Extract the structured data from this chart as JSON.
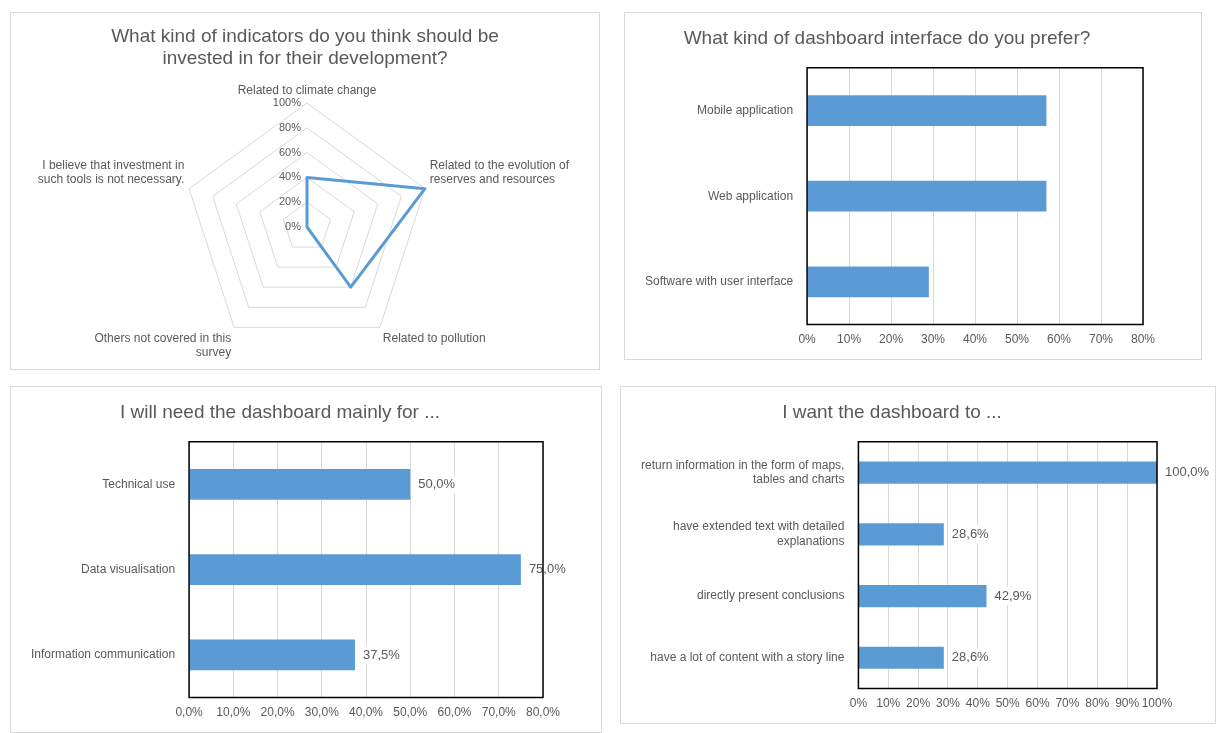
{
  "chart_data": [
    {
      "type": "radar",
      "title": "What kind of indicators do you think should be invested in for their development?",
      "categories": [
        "Related to climate change",
        "Related to the evolution of reserves and resources",
        "Related to pollution",
        "Others not covered in this survey",
        "I believe that investment in such tools is not necessary."
      ],
      "series": [
        {
          "color": "#5b9bd5",
          "values": [
            40,
            100,
            60,
            0,
            0
          ]
        }
      ],
      "ylim": [
        0,
        100
      ],
      "yticks": [
        {
          "value": 0,
          "label": "0%"
        },
        {
          "value": 20,
          "label": "20%"
        },
        {
          "value": 40,
          "label": "40%"
        },
        {
          "value": 60,
          "label": "60%"
        },
        {
          "value": 80,
          "label": "80%"
        },
        {
          "value": 100,
          "label": "100%"
        }
      ],
      "marker": "none",
      "legend": false
    },
    {
      "type": "bar",
      "orientation": "horizontal",
      "title": "What kind of dashboard interface do you prefer?",
      "categories": [
        "Mobile application",
        "Web application",
        "Software with user interface"
      ],
      "values": [
        57,
        57,
        29
      ],
      "color": "#5b9bd5",
      "xlim": [
        0,
        80
      ],
      "xticks": [
        {
          "value": 0,
          "label": "0%"
        },
        {
          "value": 10,
          "label": "10%"
        },
        {
          "value": 20,
          "label": "20%"
        },
        {
          "value": 30,
          "label": "30%"
        },
        {
          "value": 40,
          "label": "40%"
        },
        {
          "value": 50,
          "label": "50%"
        },
        {
          "value": 60,
          "label": "60%"
        },
        {
          "value": 70,
          "label": "70%"
        },
        {
          "value": 80,
          "label": "80%"
        }
      ],
      "grid": "x",
      "legend": false
    },
    {
      "type": "bar",
      "orientation": "horizontal",
      "title": "I will need the dashboard mainly for ...",
      "categories": [
        "Technical use",
        "Data visualisation",
        "Information communication"
      ],
      "values": [
        50,
        75,
        37.5
      ],
      "value_labels": [
        "50,0%",
        "75,0%",
        "37,5%"
      ],
      "color": "#5b9bd5",
      "xlim": [
        0,
        80
      ],
      "xticks": [
        {
          "value": 0,
          "label": "0,0%"
        },
        {
          "value": 10,
          "label": "10,0%"
        },
        {
          "value": 20,
          "label": "20,0%"
        },
        {
          "value": 30,
          "label": "30,0%"
        },
        {
          "value": 40,
          "label": "40,0%"
        },
        {
          "value": 50,
          "label": "50,0%"
        },
        {
          "value": 60,
          "label": "60,0%"
        },
        {
          "value": 70,
          "label": "70,0%"
        },
        {
          "value": 80,
          "label": "80,0%"
        }
      ],
      "grid": "x",
      "legend": false
    },
    {
      "type": "bar",
      "orientation": "horizontal",
      "title": "I want the dashboard to ...",
      "categories": [
        "return information in the form of maps, tables and charts",
        "have extended text with detailed explanations",
        "directly present conclusions",
        "have a lot of content with a story line"
      ],
      "values": [
        100,
        28.6,
        42.9,
        28.6
      ],
      "value_labels": [
        "100,0%",
        "28,6%",
        "42,9%",
        "28,6%"
      ],
      "color": "#5b9bd5",
      "xlim": [
        0,
        100
      ],
      "xticks": [
        {
          "value": 0,
          "label": "0%"
        },
        {
          "value": 10,
          "label": "10%"
        },
        {
          "value": 20,
          "label": "20%"
        },
        {
          "value": 30,
          "label": "30%"
        },
        {
          "value": 40,
          "label": "40%"
        },
        {
          "value": 50,
          "label": "50%"
        },
        {
          "value": 60,
          "label": "60%"
        },
        {
          "value": 70,
          "label": "70%"
        },
        {
          "value": 80,
          "label": "80%"
        },
        {
          "value": 90,
          "label": "90%"
        },
        {
          "value": 100,
          "label": "100%"
        }
      ],
      "grid": "x",
      "legend": false
    }
  ]
}
